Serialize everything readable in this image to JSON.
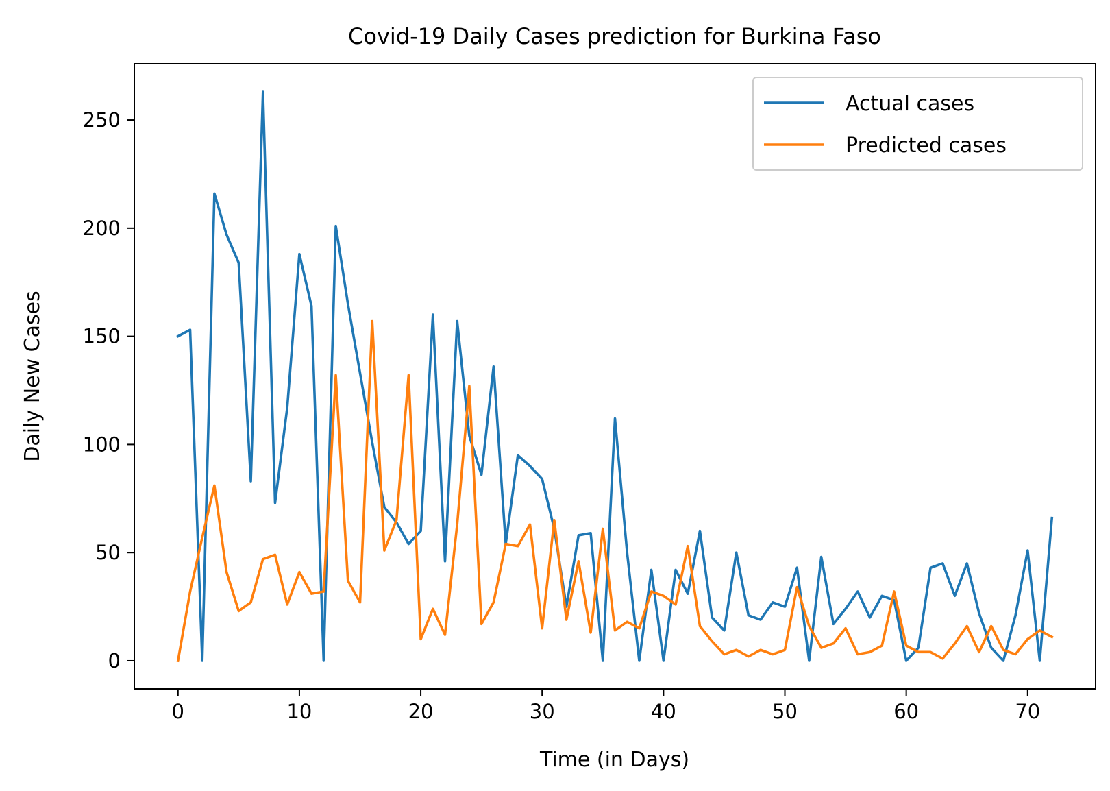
{
  "chart_data": {
    "type": "line",
    "title": "Covid-19 Daily Cases prediction for Burkina Faso",
    "xlabel": "Time (in Days)",
    "ylabel": "Daily New Cases",
    "xlim": [
      -3.6,
      75.6
    ],
    "ylim": [
      -13,
      276
    ],
    "xticks": [
      0,
      10,
      20,
      30,
      40,
      50,
      60,
      70
    ],
    "yticks": [
      0,
      50,
      100,
      150,
      200,
      250
    ],
    "grid": false,
    "legend": "top-right",
    "series": [
      {
        "name": "Actual cases",
        "color": "#1f77b4",
        "values": [
          150,
          153,
          0,
          216,
          197,
          184,
          83,
          263,
          73,
          117,
          188,
          164,
          0,
          201,
          165,
          133,
          101,
          71,
          64,
          54,
          60,
          160,
          46,
          157,
          104,
          86,
          136,
          54,
          95,
          90,
          84,
          61,
          25,
          58,
          59,
          0,
          112,
          50,
          0,
          42,
          0,
          42,
          31,
          60,
          20,
          14,
          50,
          21,
          19,
          27,
          25,
          43,
          0,
          48,
          17,
          24,
          32,
          20,
          30,
          28,
          0,
          6,
          43,
          45,
          30,
          45,
          22,
          6,
          0,
          21,
          51,
          0,
          66
        ]
      },
      {
        "name": "Predicted cases",
        "color": "#ff7f0e",
        "values": [
          0,
          32,
          57,
          81,
          41,
          23,
          27,
          47,
          49,
          26,
          41,
          31,
          32,
          132,
          37,
          27,
          157,
          51,
          65,
          132,
          10,
          24,
          12,
          63,
          127,
          17,
          27,
          54,
          53,
          63,
          15,
          65,
          19,
          46,
          13,
          61,
          14,
          18,
          15,
          32,
          30,
          26,
          53,
          16,
          9,
          3,
          5,
          2,
          5,
          3,
          5,
          34,
          16,
          6,
          8,
          15,
          3,
          4,
          7,
          32,
          7,
          4,
          4,
          1,
          8,
          16,
          4,
          16,
          5,
          3,
          10,
          14,
          11
        ]
      }
    ]
  }
}
